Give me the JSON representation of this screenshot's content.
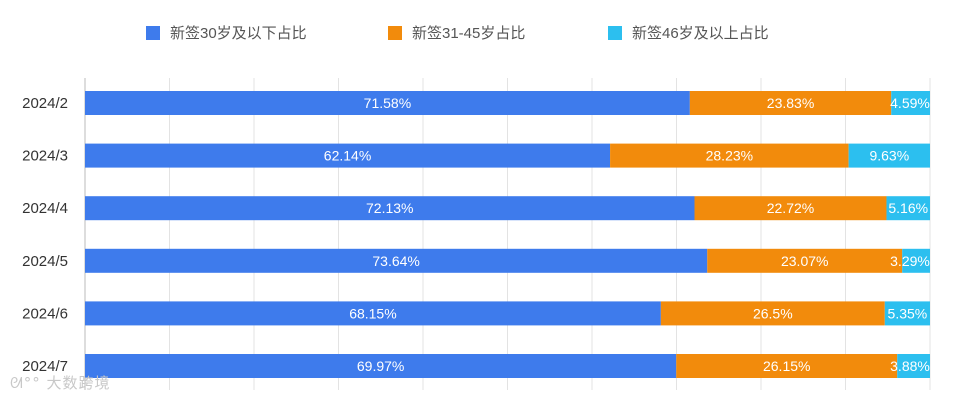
{
  "chart_data": {
    "type": "bar",
    "orientation": "horizontal",
    "stacked": true,
    "categories": [
      "2024/2",
      "2024/3",
      "2024/4",
      "2024/5",
      "2024/6",
      "2024/7"
    ],
    "series": [
      {
        "name": "新签30岁及以下占比",
        "color": "#3e7bec",
        "values": [
          71.58,
          62.14,
          72.13,
          73.64,
          68.15,
          69.97
        ],
        "labels": [
          "71.58%",
          "62.14%",
          "72.13%",
          "73.64%",
          "68.15%",
          "69.97%"
        ]
      },
      {
        "name": "新签31-45岁占比",
        "color": "#f28b0c",
        "values": [
          23.83,
          28.23,
          22.72,
          23.07,
          26.5,
          26.15
        ],
        "labels": [
          "23.83%",
          "28.23%",
          "22.72%",
          "23.07%",
          "26.5%",
          "26.15%"
        ]
      },
      {
        "name": "新签46岁及以上占比",
        "color": "#2cbfef",
        "values": [
          4.59,
          9.63,
          5.16,
          3.29,
          5.35,
          3.88
        ],
        "labels": [
          "4.59%",
          "9.63%",
          "5.16%",
          "3.29%",
          "5.35%",
          "3.88%"
        ]
      }
    ],
    "xlim": [
      0,
      100
    ],
    "grid": true,
    "legend_position": "top"
  },
  "watermark": "大数跨境",
  "watermark_icon": "paw-logo-icon"
}
